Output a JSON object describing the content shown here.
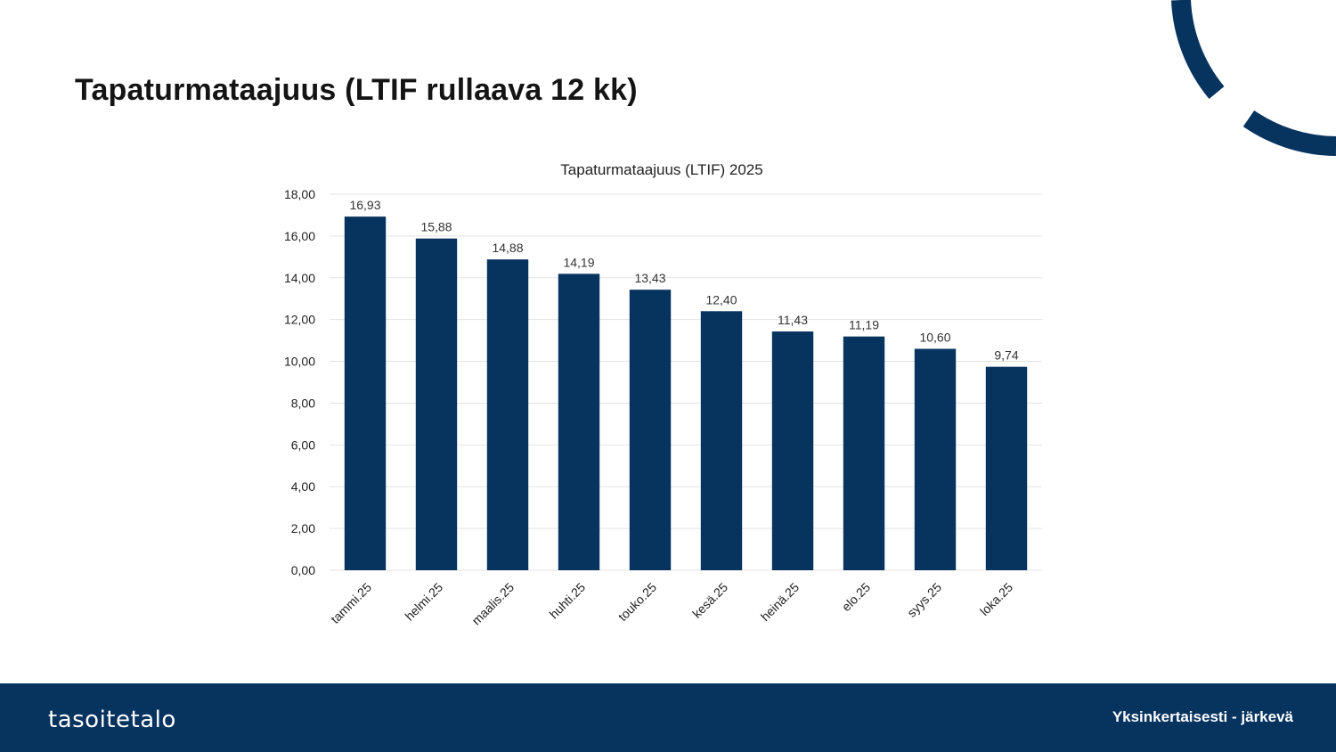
{
  "slide": {
    "title": "Tapaturmataajuus (LTIF rullaava 12 kk)"
  },
  "footer": {
    "logo_text": "tasoitetalo",
    "tagline": "Yksinkertaisesti - järkevä"
  },
  "colors": {
    "bar": "#07335f",
    "footer": "#07335f",
    "accent_arc": "#07335f",
    "gridline": "#e3e3e3"
  },
  "chart_data": {
    "type": "bar",
    "title": "Tapaturmataajuus (LTIF) 2025",
    "categories": [
      "tammi.25",
      "helmi.25",
      "maalis.25",
      "huhti.25",
      "touko.25",
      "kesä.25",
      "heinä.25",
      "elo.25",
      "syys.25",
      "loka.25"
    ],
    "values": [
      16.93,
      15.88,
      14.88,
      14.19,
      13.43,
      12.4,
      11.43,
      11.19,
      10.6,
      9.74
    ],
    "value_labels": [
      "16,93",
      "15,88",
      "14,88",
      "14,19",
      "13,43",
      "12,40",
      "11,43",
      "11,19",
      "10,60",
      "9,74"
    ],
    "y_ticks": [
      0,
      2,
      4,
      6,
      8,
      10,
      12,
      14,
      16,
      18
    ],
    "y_tick_labels": [
      "0,00",
      "2,00",
      "4,00",
      "6,00",
      "8,00",
      "10,00",
      "12,00",
      "14,00",
      "16,00",
      "18,00"
    ],
    "ylim": [
      0,
      18
    ],
    "xlabel": "",
    "ylabel": "",
    "grid": true,
    "legend": "none"
  }
}
